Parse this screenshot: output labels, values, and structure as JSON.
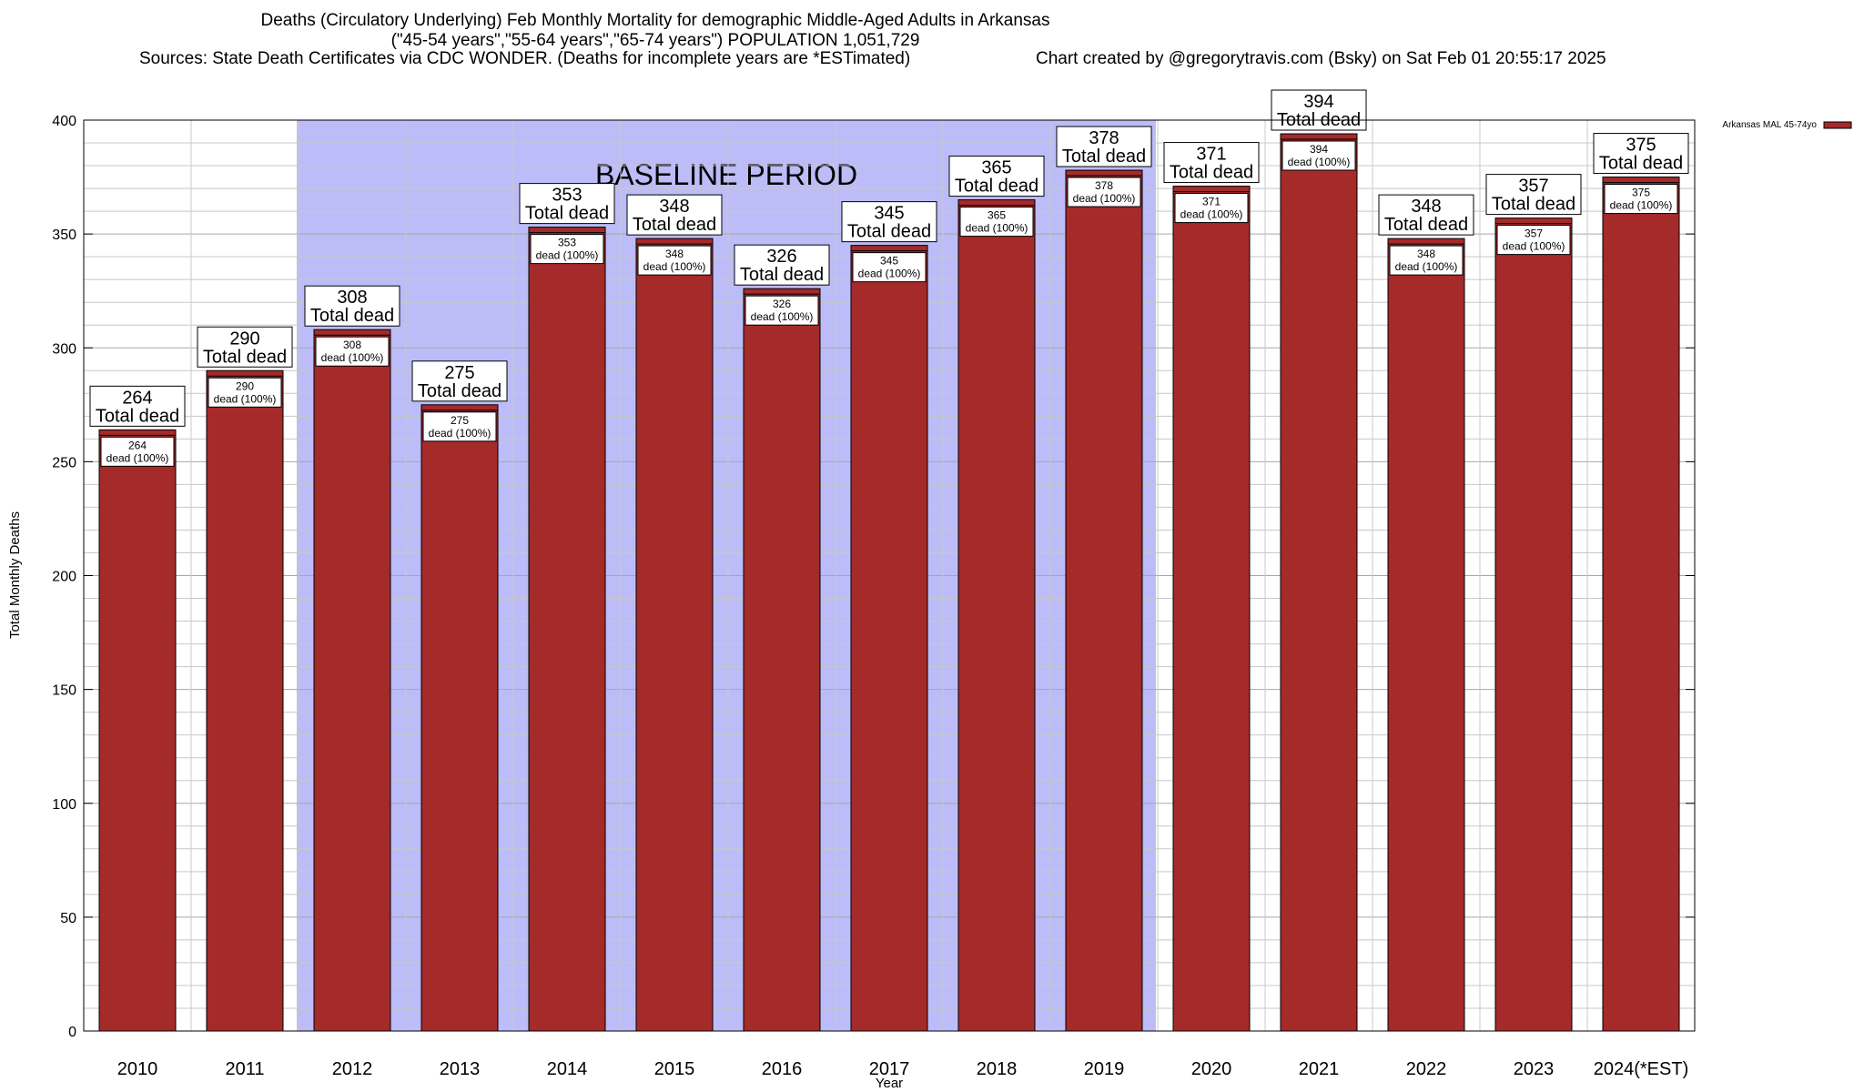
{
  "chart_data": {
    "type": "bar",
    "title_lines": [
      "Deaths (Circulatory Underlying) Feb Monthly Mortality for demographic Middle-Aged Adults in Arkansas",
      "(\"45-54 years\",\"55-64 years\",\"65-74 years\") POPULATION 1,051,729"
    ],
    "sources_text": "Sources: State Death Certificates via CDC WONDER. (Deaths for incomplete years are *ESTimated)",
    "credit_text": "Chart created by @gregorytravis.com (Bsky) on Sat Feb 01 20:55:17 2025",
    "xlabel": "Year",
    "ylabel": "Total Monthly Deaths",
    "ylim": [
      0,
      400
    ],
    "yticks": [
      0,
      50,
      100,
      150,
      200,
      250,
      300,
      350,
      400
    ],
    "grid": true,
    "categories": [
      "2010",
      "2011",
      "2012",
      "2013",
      "2014",
      "2015",
      "2016",
      "2017",
      "2018",
      "2019",
      "2020",
      "2021",
      "2022",
      "2023",
      "2024(*EST)"
    ],
    "series": [
      {
        "name": "Arkansas MAL 45-74yo",
        "color": "#a52a2a",
        "values": [
          264,
          290,
          308,
          275,
          353,
          348,
          326,
          345,
          365,
          378,
          371,
          394,
          348,
          357,
          375
        ]
      }
    ],
    "total_label_suffix": "Total dead",
    "inner_label_suffix": "dead (100%)",
    "baseline_period": {
      "label": "BASELINE PERIOD",
      "start": "2012",
      "end": "2019",
      "color": "#bcbcf8"
    },
    "legend_position": "top-right"
  }
}
